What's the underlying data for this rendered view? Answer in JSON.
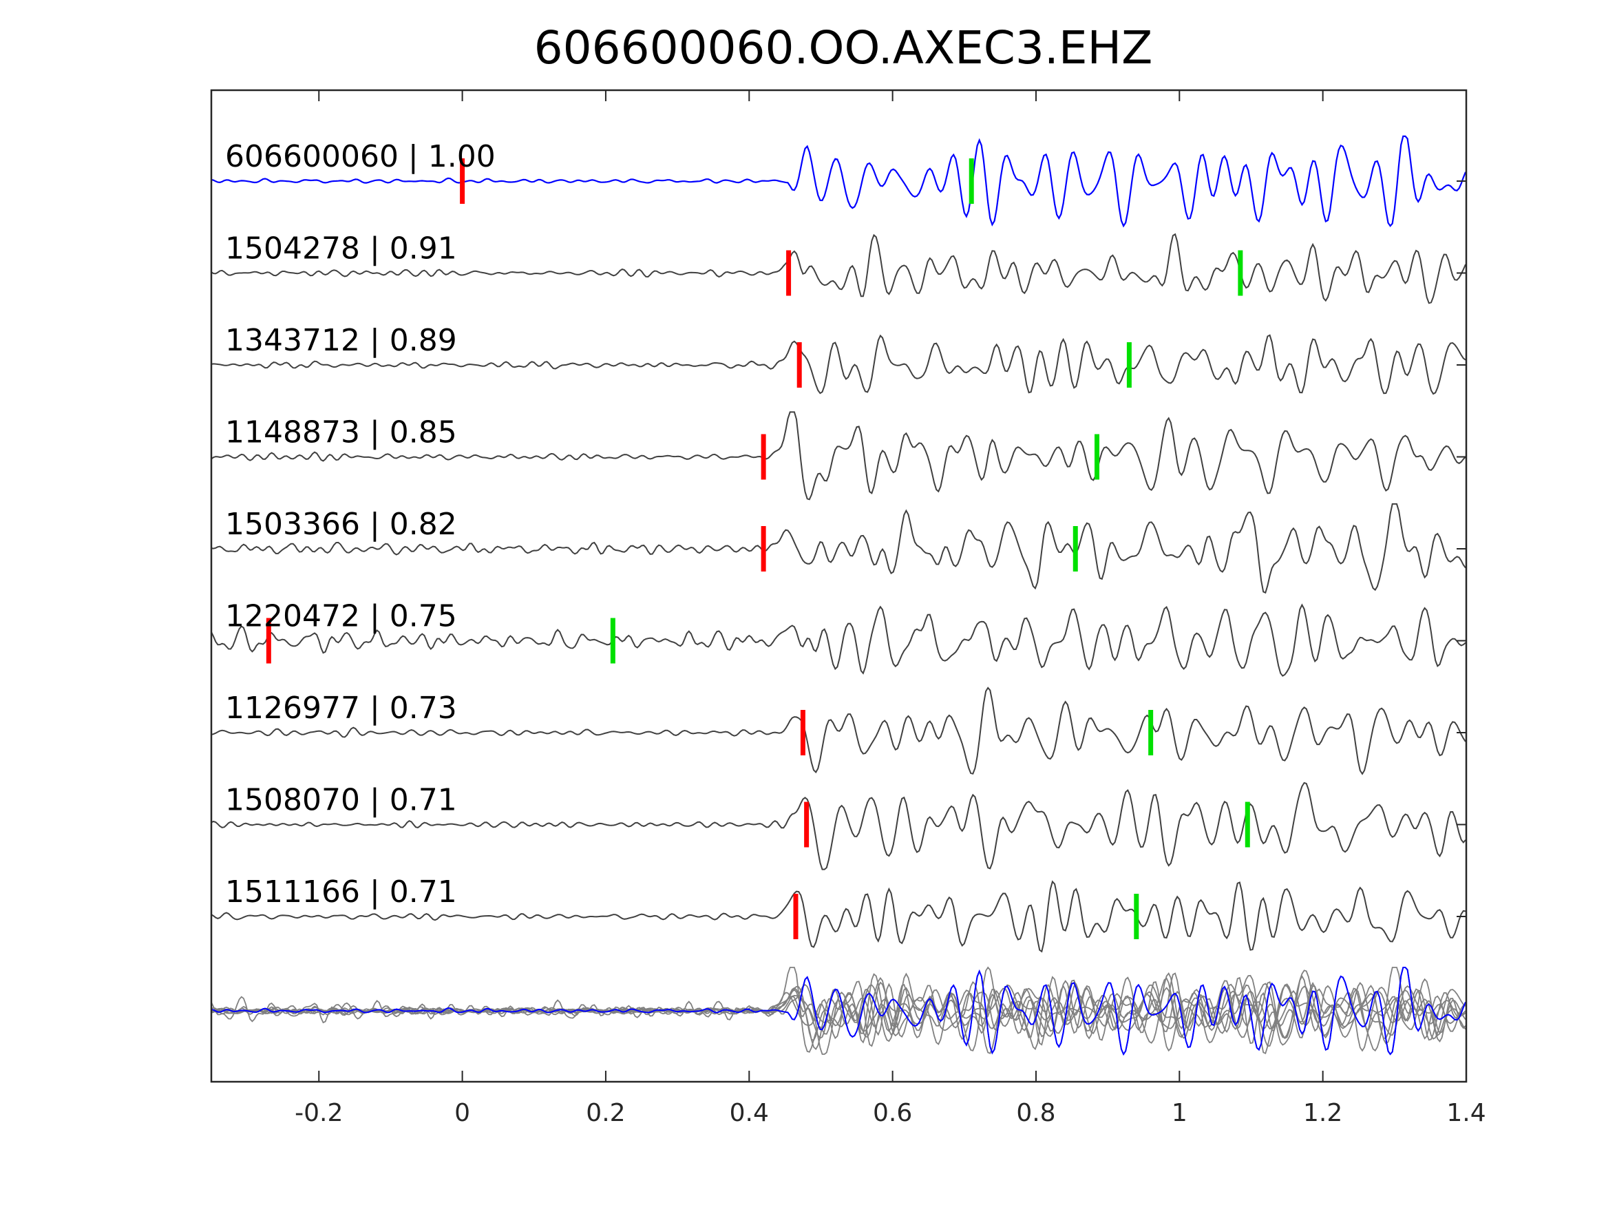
{
  "chart_data": {
    "type": "line",
    "title": "606600060.OO.AXEC3.EHZ",
    "xlabel": "",
    "ylabel": "",
    "xlim": [
      -0.35,
      1.4
    ],
    "xticks": [
      -0.2,
      0,
      0.2,
      0.4,
      0.6,
      0.8,
      1,
      1.2,
      1.4
    ],
    "xtick_labels": [
      "-0.2",
      "0",
      "0.2",
      "0.4",
      "0.6",
      "0.8",
      "1",
      "1.2",
      "1.4"
    ],
    "grid": false,
    "colors": {
      "template": "#0000ff",
      "match": "#404040",
      "stack": "#808080",
      "p_pick": "#ff0000",
      "s_pick": "#00e000"
    },
    "traces": [
      {
        "label": "606600060 | 1.00",
        "id": "606600060",
        "cc": 1.0,
        "p_pick": 0.0,
        "s_pick": 0.71,
        "onset": 0.455,
        "template": true
      },
      {
        "label": "1504278 | 0.91",
        "id": "1504278",
        "cc": 0.91,
        "p_pick": 0.455,
        "s_pick": 1.085,
        "onset": 0.45
      },
      {
        "label": "1343712 | 0.89",
        "id": "1343712",
        "cc": 0.89,
        "p_pick": 0.47,
        "s_pick": 0.93,
        "onset": 0.45
      },
      {
        "label": "1148873 | 0.85",
        "id": "1148873",
        "cc": 0.85,
        "p_pick": 0.42,
        "s_pick": 0.885,
        "onset": 0.44
      },
      {
        "label": "1503366 | 0.82",
        "id": "1503366",
        "cc": 0.82,
        "p_pick": 0.42,
        "s_pick": 0.855,
        "onset": 0.44
      },
      {
        "label": "1220472 | 0.75",
        "id": "1220472",
        "cc": 0.75,
        "p_pick": -0.27,
        "s_pick": 0.21,
        "onset": 0.45
      },
      {
        "label": "1126977 | 0.73",
        "id": "1126977",
        "cc": 0.73,
        "p_pick": 0.475,
        "s_pick": 0.96,
        "onset": 0.455
      },
      {
        "label": "1508070 | 0.71",
        "id": "1508070",
        "cc": 0.71,
        "p_pick": 0.48,
        "s_pick": 1.095,
        "onset": 0.46
      },
      {
        "label": "1511166 | 0.71",
        "id": "1511166",
        "cc": 0.71,
        "p_pick": 0.465,
        "s_pick": 0.94,
        "onset": 0.45
      }
    ]
  }
}
